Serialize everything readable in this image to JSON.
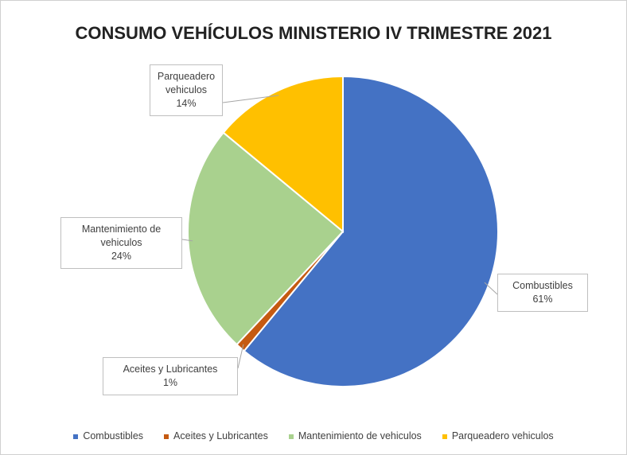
{
  "chart_data": {
    "type": "pie",
    "title": "CONSUMO VEHÍCULOS MINISTERIO IV TRIMESTRE 2021",
    "categories": [
      "Combustibles",
      "Aceites y Lubricantes",
      "Mantenimiento de vehiculos",
      "Parqueadero vehiculos"
    ],
    "values": [
      61,
      1,
      24,
      14
    ],
    "value_labels": [
      "61%",
      "1%",
      "24%",
      "14%"
    ],
    "colors": [
      "#4472c4",
      "#c55a11",
      "#a9d18e",
      "#ffc000"
    ],
    "legend": "bottom"
  }
}
